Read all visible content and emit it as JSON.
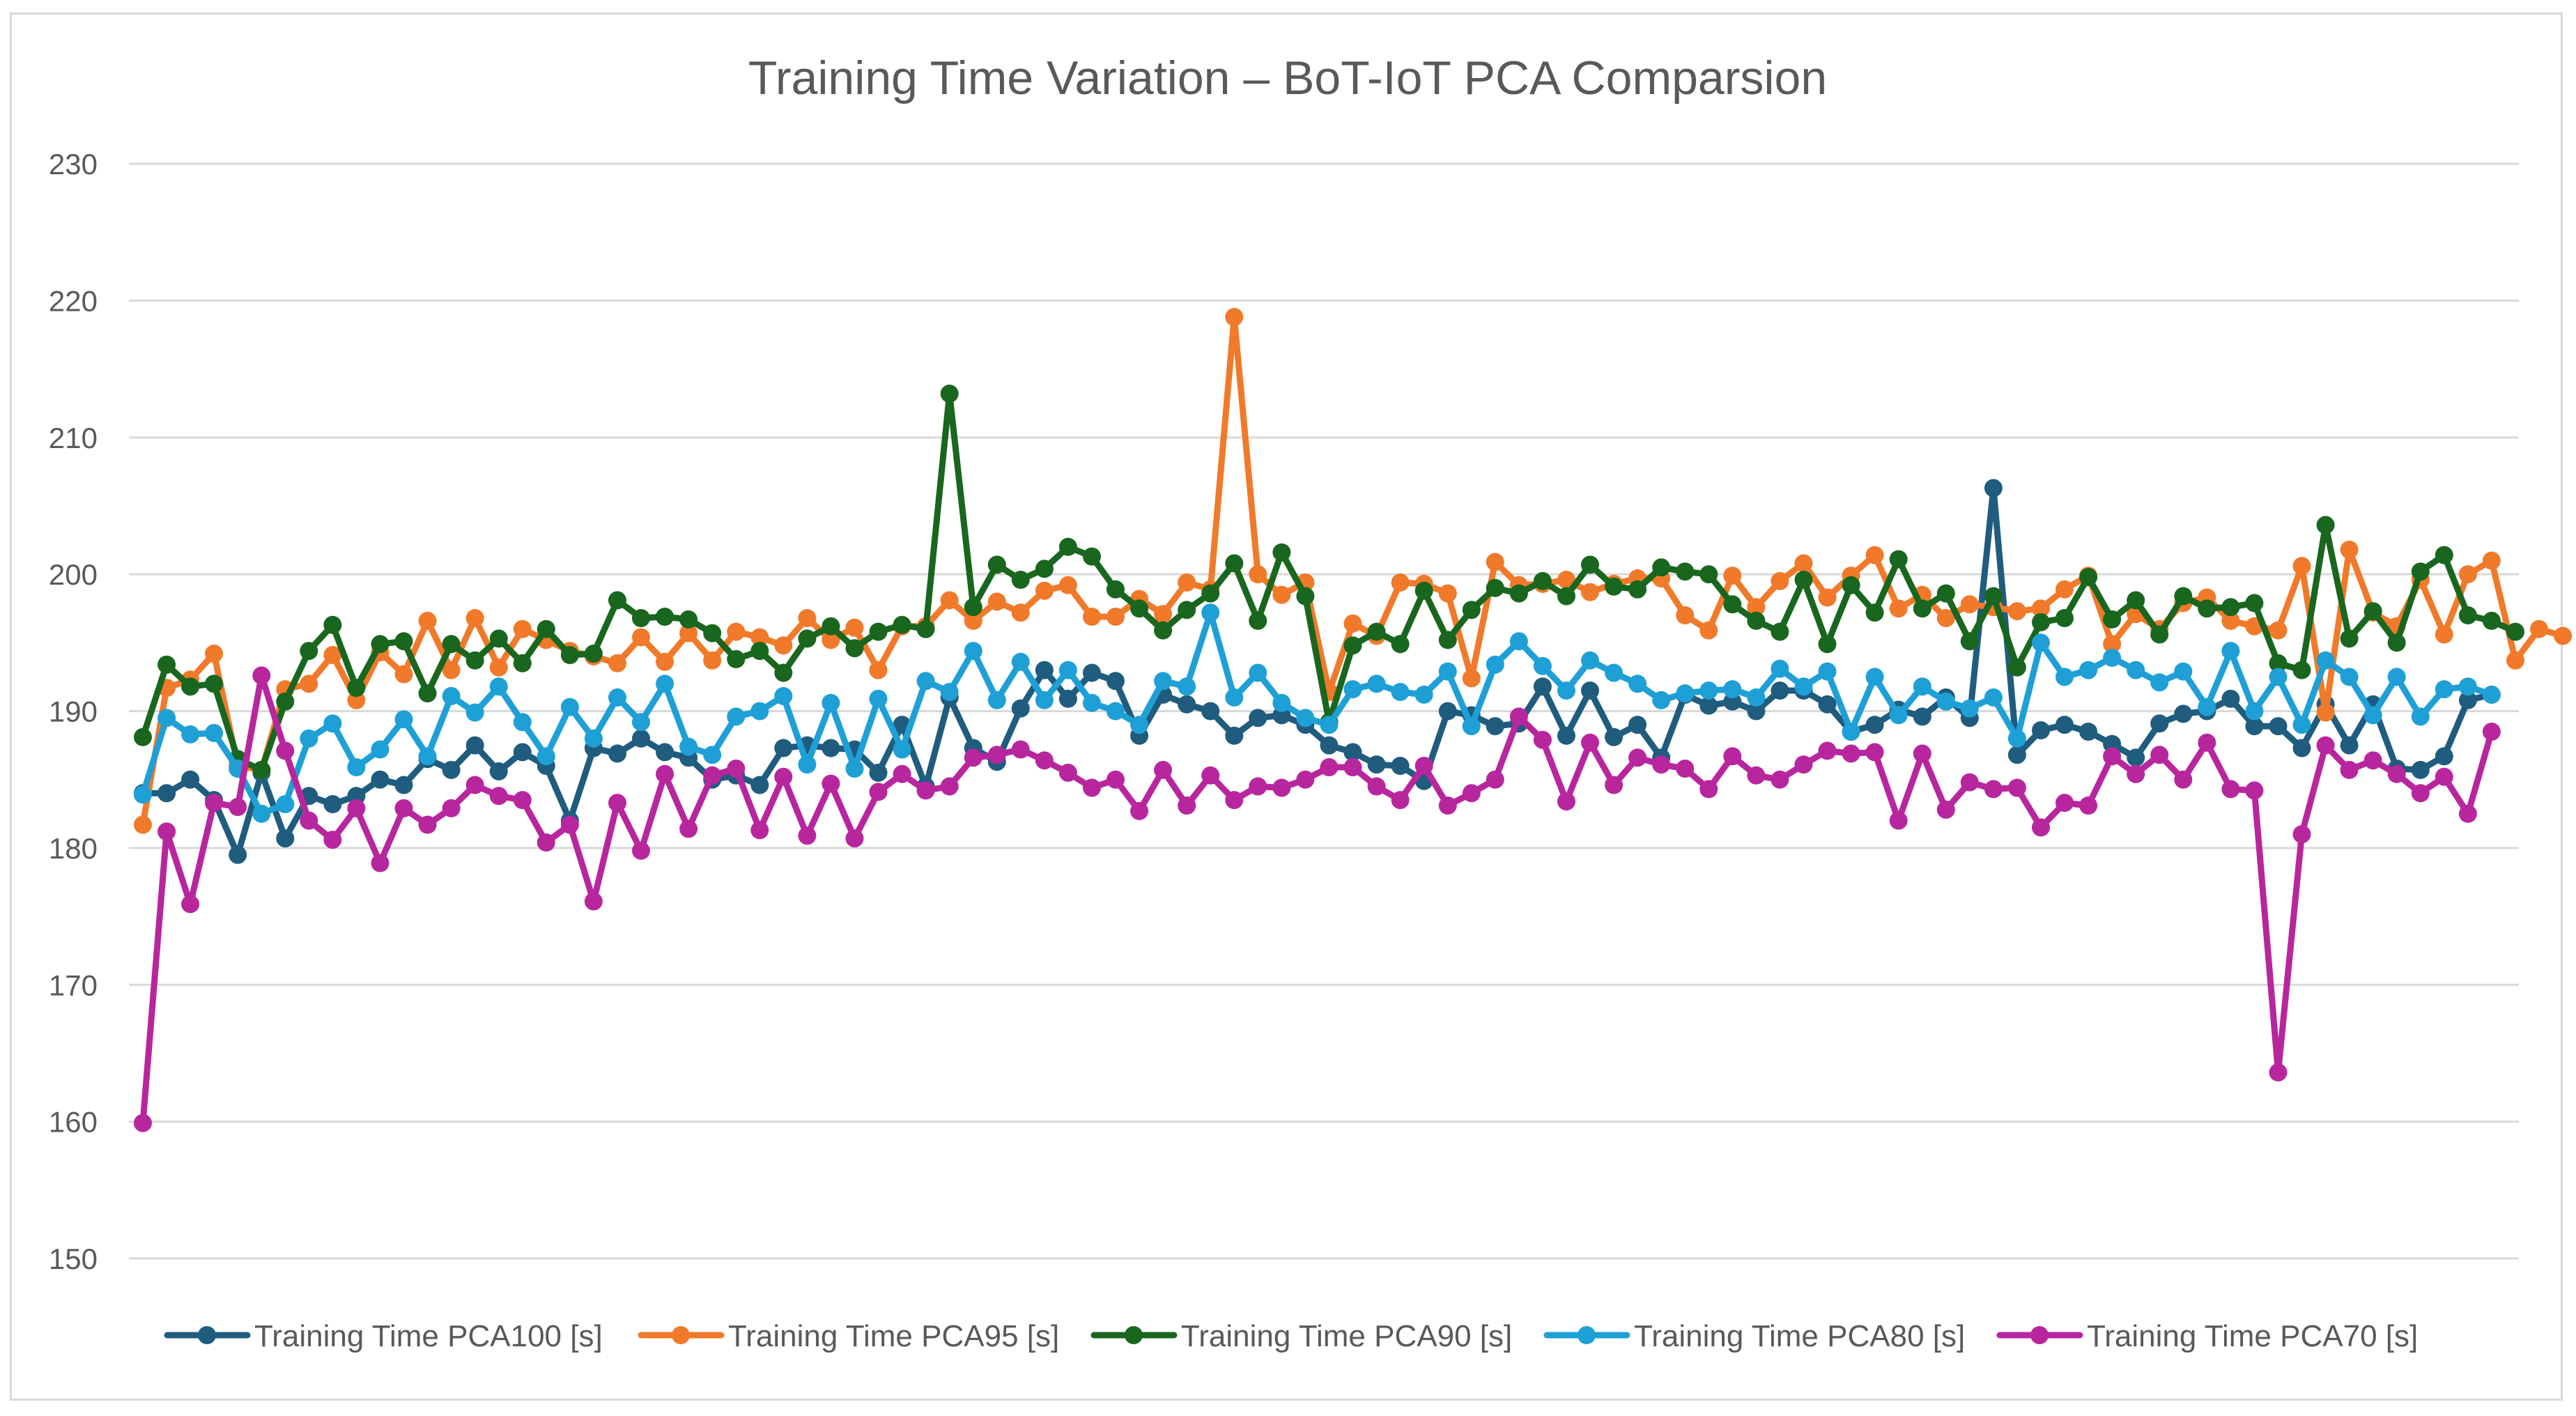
{
  "chart_data": {
    "type": "line",
    "title": "Training Time Variation – BoT-IoT PCA Comparsion",
    "xlabel": "",
    "ylabel": "",
    "ylim": [
      150,
      230
    ],
    "yticks": [
      150,
      160,
      170,
      180,
      190,
      200,
      210,
      220,
      230
    ],
    "grid": true,
    "legend_position": "bottom",
    "series": [
      {
        "name": "Training Time PCA100 [s]",
        "color": "#1F5C7E",
        "values": [
          184.0,
          184.0,
          185.0,
          183.5,
          179.5,
          185.5,
          180.7,
          183.8,
          183.2,
          183.8,
          185.0,
          184.6,
          186.5,
          185.7,
          187.5,
          185.6,
          187.0,
          186.0,
          182.0,
          187.3,
          186.9,
          188.0,
          187.0,
          186.6,
          185.0,
          185.3,
          184.6,
          187.3,
          187.5,
          187.3,
          187.2,
          185.5,
          189.0,
          184.5,
          191.0,
          187.3,
          186.3,
          190.2,
          193.0,
          190.9,
          192.8,
          192.2,
          188.2,
          191.2,
          190.5,
          190.0,
          188.2,
          189.5,
          189.7,
          189.0,
          187.5,
          187.0,
          186.1,
          186.0,
          184.9,
          190.0,
          189.7,
          188.9,
          189.1,
          191.8,
          188.2,
          191.5,
          188.1,
          189.0,
          186.6,
          191.2,
          190.4,
          190.7,
          190.0,
          191.5,
          191.5,
          190.5,
          188.5,
          189.0,
          190.1,
          189.6,
          191.0,
          189.5,
          206.3,
          186.8,
          188.6,
          189.0,
          188.5,
          187.6,
          186.6,
          189.1,
          189.8,
          190.0,
          190.9,
          188.9,
          188.9,
          187.3,
          190.5,
          187.5,
          190.5,
          185.8,
          185.7,
          186.7,
          190.8,
          191.2
        ]
      },
      {
        "name": "Training Time PCA95 [s]",
        "color": "#F07A2A",
        "values": [
          181.7,
          191.7,
          192.3,
          194.2,
          186.0,
          185.7,
          191.6,
          192.0,
          194.1,
          190.8,
          194.3,
          192.7,
          196.6,
          193.0,
          196.8,
          193.2,
          196.0,
          195.2,
          194.4,
          194.0,
          193.5,
          195.4,
          193.6,
          195.7,
          193.7,
          195.8,
          195.4,
          194.8,
          196.8,
          195.2,
          196.1,
          193.0,
          196.2,
          196.2,
          198.1,
          196.6,
          198.0,
          197.2,
          198.8,
          199.2,
          196.9,
          196.9,
          198.2,
          197.1,
          199.4,
          198.9,
          218.8,
          200.0,
          198.5,
          199.4,
          191.4,
          196.4,
          195.5,
          199.4,
          199.3,
          198.6,
          192.4,
          200.9,
          199.2,
          199.3,
          199.6,
          198.7,
          199.3,
          199.7,
          199.7,
          197.0,
          195.9,
          199.9,
          197.6,
          199.5,
          200.8,
          198.3,
          199.9,
          201.4,
          197.5,
          198.5,
          196.8,
          197.8,
          197.6,
          197.3,
          197.5,
          198.9,
          199.9,
          194.9,
          197.1,
          196.0,
          197.9,
          198.3,
          196.6,
          196.2,
          195.9,
          200.6,
          189.9,
          201.8,
          197.2,
          196.2,
          199.6,
          195.6,
          200.0,
          201.0,
          193.7,
          196.0,
          195.5
        ]
      },
      {
        "name": "Training Time PCA90 [s]",
        "color": "#19661E",
        "values": [
          188.1,
          193.4,
          191.8,
          192.0,
          186.5,
          185.7,
          190.7,
          194.4,
          196.3,
          191.7,
          194.9,
          195.1,
          191.3,
          194.9,
          193.7,
          195.3,
          193.5,
          196.0,
          194.1,
          194.2,
          198.1,
          196.8,
          196.9,
          196.7,
          195.7,
          193.8,
          194.4,
          192.8,
          195.3,
          196.2,
          194.6,
          195.8,
          196.3,
          196.0,
          213.2,
          197.6,
          200.7,
          199.6,
          200.4,
          202.0,
          201.3,
          198.9,
          197.5,
          195.9,
          197.4,
          198.6,
          200.8,
          196.6,
          201.6,
          198.4,
          189.2,
          194.8,
          195.8,
          194.9,
          198.8,
          195.2,
          197.4,
          199.0,
          198.6,
          199.5,
          198.4,
          200.7,
          199.1,
          198.9,
          200.5,
          200.2,
          200.0,
          197.8,
          196.6,
          195.8,
          199.6,
          194.9,
          199.2,
          197.2,
          201.1,
          197.5,
          198.6,
          195.1,
          198.4,
          193.2,
          196.5,
          196.8,
          199.8,
          196.7,
          198.1,
          195.6,
          198.4,
          197.5,
          197.6,
          197.9,
          193.5,
          193.0,
          203.6,
          195.3,
          197.3,
          195.0,
          200.2,
          201.4,
          197.0,
          196.6,
          195.8
        ]
      },
      {
        "name": "Training Time PCA80 [s]",
        "color": "#1EA0D6",
        "values": [
          183.9,
          189.5,
          188.3,
          188.4,
          185.8,
          182.5,
          183.2,
          188.0,
          189.1,
          185.9,
          187.2,
          189.4,
          186.7,
          191.1,
          189.9,
          191.8,
          189.2,
          186.7,
          190.3,
          188.0,
          191.0,
          189.2,
          192.0,
          187.4,
          186.8,
          189.6,
          190.0,
          191.1,
          186.1,
          190.6,
          185.8,
          190.9,
          187.2,
          192.2,
          191.4,
          194.4,
          190.8,
          193.6,
          190.8,
          193.0,
          190.6,
          190.0,
          189.0,
          192.2,
          191.8,
          197.2,
          191.0,
          192.8,
          190.6,
          189.5,
          189.0,
          191.6,
          192.0,
          191.4,
          191.2,
          192.9,
          188.9,
          193.4,
          195.1,
          193.3,
          191.5,
          193.7,
          192.8,
          192.0,
          190.8,
          191.3,
          191.5,
          191.6,
          191.0,
          193.1,
          191.8,
          192.9,
          188.5,
          192.5,
          189.7,
          191.8,
          190.7,
          190.2,
          191.0,
          188.0,
          195.0,
          192.5,
          193.0,
          193.9,
          193.0,
          192.1,
          192.9,
          190.3,
          194.4,
          190.0,
          192.5,
          189.0,
          193.7,
          192.5,
          189.7,
          192.5,
          189.6,
          191.6,
          191.8,
          191.2
        ]
      },
      {
        "name": "Training Time PCA70 [s]",
        "color": "#B8269E",
        "values": [
          159.9,
          181.2,
          175.9,
          183.3,
          183.0,
          192.6,
          187.1,
          182.0,
          180.6,
          182.9,
          178.9,
          182.9,
          181.7,
          182.9,
          184.6,
          183.8,
          183.5,
          180.4,
          181.7,
          176.1,
          183.3,
          179.8,
          185.4,
          181.4,
          185.3,
          185.8,
          181.3,
          185.2,
          180.9,
          184.7,
          180.7,
          184.1,
          185.4,
          184.2,
          184.5,
          186.6,
          186.8,
          187.2,
          186.4,
          185.5,
          184.4,
          185.0,
          182.7,
          185.7,
          183.1,
          185.3,
          183.5,
          184.5,
          184.4,
          185.0,
          185.9,
          185.9,
          184.5,
          183.5,
          186.0,
          183.1,
          184.0,
          185.0,
          189.6,
          187.9,
          183.4,
          187.7,
          184.6,
          186.6,
          186.1,
          185.8,
          184.3,
          186.7,
          185.3,
          185.0,
          186.1,
          187.1,
          186.9,
          187.0,
          182.0,
          186.9,
          182.8,
          184.8,
          184.3,
          184.4,
          181.5,
          183.3,
          183.1,
          186.7,
          185.4,
          186.8,
          185.0,
          187.7,
          184.3,
          184.2,
          163.6,
          181.0,
          187.5,
          185.7,
          186.4,
          185.4,
          184.0,
          185.2,
          182.5,
          188.5
        ]
      }
    ]
  }
}
